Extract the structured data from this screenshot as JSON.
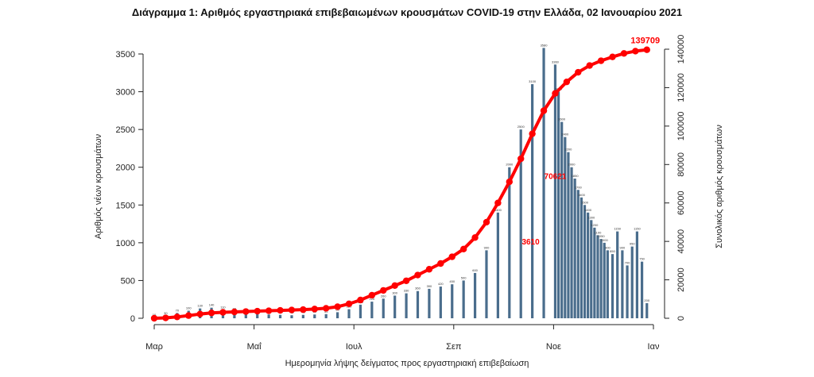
{
  "chart_data": {
    "type": "bar",
    "title": "Διάγραμμα 1: Αριθμός εργαστηριακά επιβεβαιωμένων κρουσμάτων COVID-19 στην Ελλάδα, 02 Ιανουαρίου 2021",
    "xlabel": "Ημερομηνία λήψης δείγματος προς εργαστηριακή επιβεβαίωση",
    "ylabel_left": "Αριθμός νέων κρουσμάτων",
    "ylabel_right": "Συνολικός αριθμός κρουσμάτων",
    "x_ticks": [
      "Μαρ",
      "Μαΐ",
      "Ιουλ",
      "Σεπ",
      "Νοε",
      "Ιαν"
    ],
    "ylim_left": [
      0,
      3500
    ],
    "yticks_left": [
      0,
      500,
      1000,
      1500,
      2000,
      2500,
      3000,
      3500
    ],
    "ylim_right": [
      0,
      140000
    ],
    "yticks_right": [
      0,
      20000,
      40000,
      60000,
      80000,
      100000,
      120000,
      140000
    ],
    "grid": false,
    "colors": {
      "bars": "#4a6d8c",
      "cumulative": "#ff0000"
    },
    "series": [
      {
        "type": "bar",
        "axis": "left",
        "x": [
          0,
          7,
          14,
          21,
          28,
          35,
          42,
          49,
          56,
          63,
          70,
          77,
          84,
          91,
          98,
          105,
          112,
          119,
          126,
          133,
          140,
          147,
          154,
          161,
          168,
          175,
          182,
          189,
          196,
          203,
          210,
          217,
          224,
          231,
          238,
          245,
          247,
          249,
          251,
          253,
          255,
          257,
          259,
          261,
          263,
          265,
          267,
          269,
          271,
          273,
          275,
          277,
          280,
          283,
          286,
          289,
          292,
          295,
          298,
          301
        ],
        "values": [
          10,
          30,
          70,
          100,
          130,
          140,
          110,
          90,
          70,
          60,
          50,
          45,
          40,
          45,
          50,
          55,
          80,
          120,
          180,
          220,
          260,
          300,
          330,
          360,
          390,
          420,
          450,
          500,
          600,
          900,
          1400,
          2000,
          2500,
          3100,
          3580,
          3360,
          3000,
          2600,
          2400,
          2200,
          2000,
          1850,
          1700,
          1600,
          1500,
          1400,
          1300,
          1200,
          1100,
          1050,
          1000,
          900,
          850,
          1150,
          900,
          700,
          950,
          1150,
          750,
          200
        ]
      },
      {
        "type": "line",
        "axis": "right",
        "x": [
          0,
          7,
          14,
          21,
          28,
          35,
          42,
          49,
          56,
          63,
          70,
          77,
          84,
          91,
          98,
          105,
          112,
          119,
          126,
          133,
          140,
          147,
          154,
          161,
          168,
          175,
          182,
          189,
          196,
          203,
          210,
          217,
          224,
          231,
          238,
          245,
          252,
          259,
          266,
          273,
          280,
          287,
          294,
          301
        ],
        "values": [
          0,
          200,
          700,
          1400,
          2200,
          2800,
          3100,
          3300,
          3500,
          3700,
          3900,
          4100,
          4300,
          4500,
          4800,
          5200,
          6000,
          7500,
          9500,
          12000,
          14500,
          17000,
          19500,
          22500,
          25500,
          28500,
          32000,
          36000,
          42000,
          50000,
          60000,
          71000,
          83000,
          96000,
          108000,
          117000,
          123000,
          128000,
          131500,
          134000,
          136000,
          137800,
          139000,
          139709
        ]
      }
    ],
    "annotations": [
      {
        "text": "3610",
        "x": 230,
        "y_right": 38500
      },
      {
        "text": "70621",
        "x": 245,
        "y_right": 72500
      },
      {
        "text": "139709",
        "x": 301,
        "y_right": 139709
      }
    ]
  }
}
